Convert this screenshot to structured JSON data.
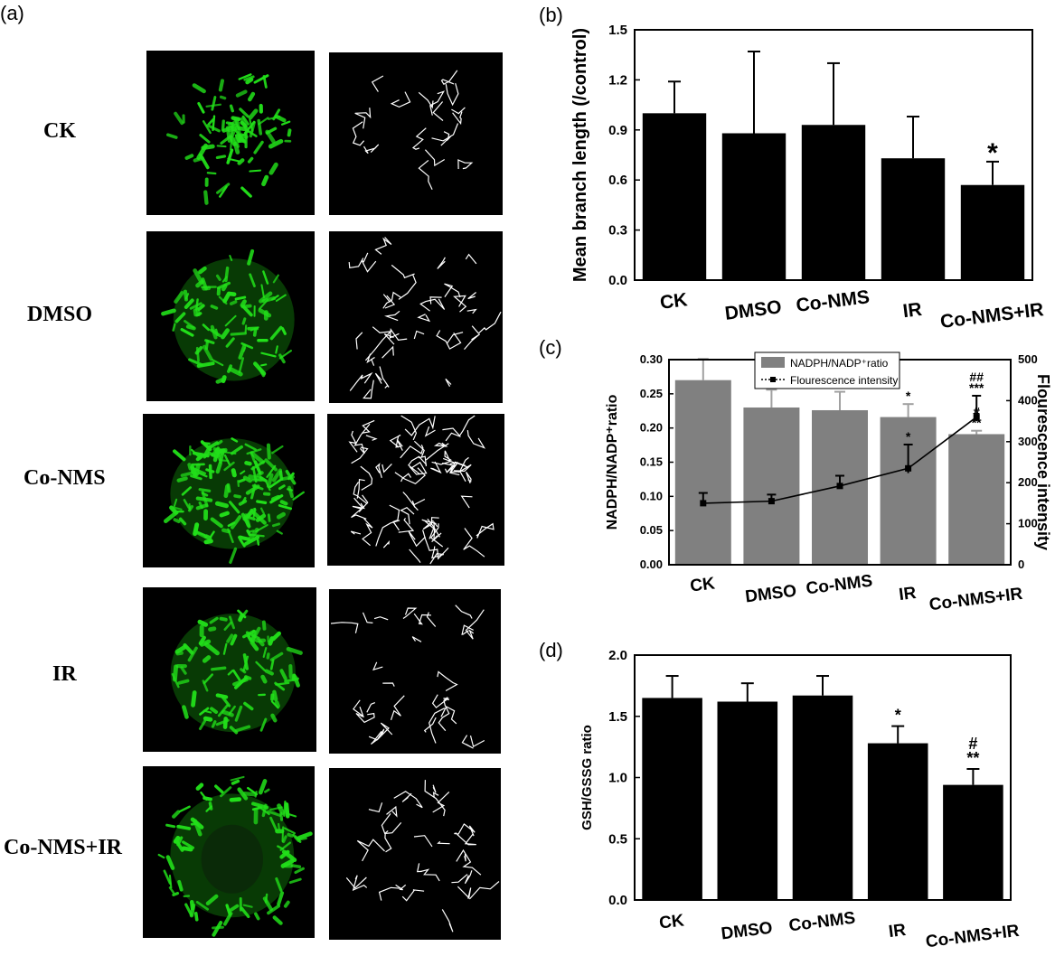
{
  "figure": {
    "panel_labels": [
      "(a)",
      "(b)",
      "(c)",
      "(d)"
    ],
    "row_labels": [
      "CK",
      "DMSO",
      "Co-NMS",
      "IR",
      "Co-NMS+IR"
    ]
  },
  "colors": {
    "fluorescence": "#22e01a",
    "skeleton": "#ffffff",
    "bar_black": "#000000",
    "bar_gray": "#808080",
    "errorbar_gray": "#a0a0a0"
  },
  "chart_data": [
    {
      "id": "b",
      "type": "bar",
      "categories": [
        "CK",
        "DMSO",
        "Co-NMS",
        "IR",
        "Co-NMS+IR"
      ],
      "values": [
        1.0,
        0.88,
        0.93,
        0.73,
        0.57
      ],
      "errors": [
        0.19,
        0.49,
        0.37,
        0.25,
        0.14
      ],
      "annotations": [
        "",
        "",
        "",
        "",
        "*"
      ],
      "ylabel": "Mean branch length (/control)",
      "ylim": [
        0,
        1.5
      ],
      "yticks": [
        "0.0",
        "0.3",
        "0.6",
        "0.9",
        "1.2",
        "1.5"
      ]
    },
    {
      "id": "c",
      "type": "bar",
      "categories": [
        "CK",
        "DMSO",
        "Co-NMS",
        "IR",
        "Co-NMS+IR"
      ],
      "series": [
        {
          "name": "NADPH/NADP⁺ratio",
          "values": [
            0.27,
            0.23,
            0.226,
            0.216,
            0.191
          ],
          "errors": [
            0.031,
            0.026,
            0.027,
            0.019,
            0.005
          ],
          "annotations": [
            "",
            "",
            "",
            "*",
            "#\n**"
          ]
        },
        {
          "name": "Flourescence intensity",
          "type": "line",
          "axis": "right",
          "values": [
            150,
            155,
            192,
            235,
            360
          ],
          "errors": [
            25,
            16,
            25,
            58,
            52
          ],
          "annotations": [
            "",
            "",
            "",
            "*",
            "##\n***"
          ]
        }
      ],
      "ylabel_left": "NADPH/NADP⁺ratio",
      "ylabel_right": "Flourescence intensity",
      "ylim_left": [
        0,
        0.3
      ],
      "ylim_right": [
        0,
        500
      ],
      "yticks_left": [
        "0.00",
        "0.05",
        "0.10",
        "0.15",
        "0.20",
        "0.25",
        "0.30"
      ],
      "yticks_right": [
        "0",
        "100",
        "200",
        "300",
        "400",
        "500"
      ],
      "legend": "top-center"
    },
    {
      "id": "d",
      "type": "bar",
      "categories": [
        "CK",
        "DMSO",
        "Co-NMS",
        "IR",
        "Co-NMS+IR"
      ],
      "values": [
        1.65,
        1.62,
        1.67,
        1.28,
        0.94
      ],
      "errors": [
        0.18,
        0.15,
        0.16,
        0.14,
        0.13
      ],
      "annotations": [
        "",
        "",
        "",
        "*",
        "#\n**"
      ],
      "ylabel": "GSH/GSSG ratio",
      "ylim": [
        0,
        2.0
      ],
      "yticks": [
        "0.0",
        "0.5",
        "1.0",
        "1.5",
        "2.0"
      ]
    }
  ]
}
